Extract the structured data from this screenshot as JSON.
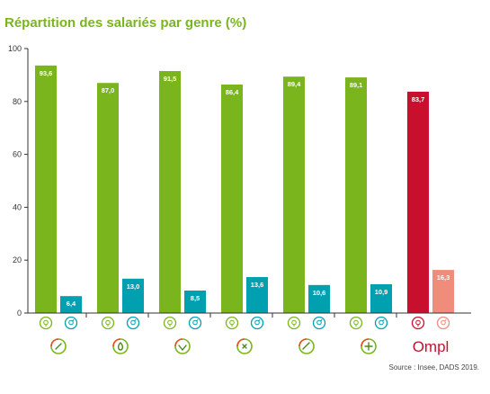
{
  "chart_data": {
    "type": "bar",
    "title": "Répartition des salariés par genre (%)",
    "xlabel": "",
    "ylabel": "",
    "ylim": [
      0,
      100
    ],
    "yticks": [
      0,
      20,
      40,
      60,
      80,
      100
    ],
    "grid": false,
    "groups": [
      {
        "icon": "branch-sector-1-icon",
        "female": 93.6,
        "female_label": "93,6",
        "male": 6.4,
        "male_label": "6,4",
        "female_color": "#7ab51d",
        "male_color": "#00a0b0"
      },
      {
        "icon": "branch-sector-2-icon",
        "female": 87.0,
        "female_label": "87,0",
        "male": 13.0,
        "male_label": "13,0",
        "female_color": "#7ab51d",
        "male_color": "#00a0b0"
      },
      {
        "icon": "branch-sector-3-icon",
        "female": 91.5,
        "female_label": "91,5",
        "male": 8.5,
        "male_label": "8,5",
        "female_color": "#7ab51d",
        "male_color": "#00a0b0"
      },
      {
        "icon": "branch-sector-4-icon",
        "female": 86.4,
        "female_label": "86,4",
        "male": 13.6,
        "male_label": "13,6",
        "female_color": "#7ab51d",
        "male_color": "#00a0b0"
      },
      {
        "icon": "branch-sector-5-icon",
        "female": 89.4,
        "female_label": "89,4",
        "male": 10.6,
        "male_label": "10,6",
        "female_color": "#7ab51d",
        "male_color": "#00a0b0"
      },
      {
        "icon": "branch-sector-6-icon",
        "female": 89.1,
        "female_label": "89,1",
        "male": 10.9,
        "male_label": "10,9",
        "female_color": "#7ab51d",
        "male_color": "#00a0b0"
      },
      {
        "icon": "ompl-logo",
        "logo_text": "Ompl",
        "female": 83.7,
        "female_label": "83,7",
        "male": 16.3,
        "male_label": "16,3",
        "female_color": "#c8102e",
        "male_color": "#f08c7c"
      }
    ],
    "female_symbol_icon": "female-symbol-icon",
    "male_symbol_icon": "male-symbol-icon"
  },
  "source": "Source : Insee, DADS 2019."
}
